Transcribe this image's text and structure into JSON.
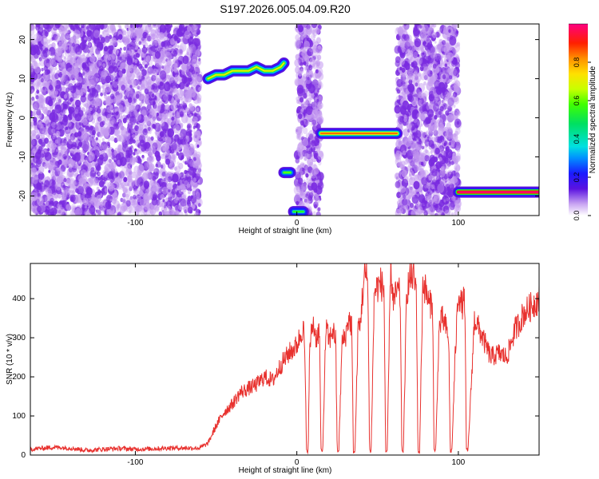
{
  "figure_title": "S197.2026.005.04.09.R20",
  "colors": {
    "snr_line": "#e8312e",
    "sparse_purple": "#7a2be0",
    "faint_purple": "#c49af0",
    "axis": "#000000"
  },
  "chart_data": [
    {
      "id": "spectrogram",
      "type": "heatmap",
      "title": "",
      "xlabel": "Height of straight line (km)",
      "ylabel": "Frequency (Hz)",
      "xlim": [
        -165,
        150
      ],
      "ylim": [
        -25,
        24
      ],
      "x_ticks": [
        -100,
        0,
        100
      ],
      "x_tick_labels": [
        "-100",
        "0",
        "100"
      ],
      "y_ticks": [
        -20,
        -10,
        0,
        10,
        20
      ],
      "y_tick_labels": [
        "-20",
        "-10",
        "0",
        "10",
        "20"
      ],
      "noise_regions": [
        {
          "x": [
            -165,
            -60
          ],
          "level": 0.15
        },
        {
          "x": [
            0,
            15
          ],
          "level": 0.1
        },
        {
          "x": [
            62,
            100
          ],
          "level": 0.15
        }
      ],
      "ridges": [
        {
          "x": [
            -55,
            -50,
            -45,
            -40,
            -35,
            -30,
            -25,
            -20,
            -15,
            -10,
            -8
          ],
          "y": [
            10,
            11,
            11,
            12,
            12,
            12,
            13,
            12,
            12,
            13,
            14
          ],
          "amplitude": 0.55
        },
        {
          "x": [
            -8,
            -4
          ],
          "y": [
            -14,
            -14
          ],
          "amplitude": 0.45
        },
        {
          "x": [
            -2,
            4
          ],
          "y": [
            -24,
            -24
          ],
          "amplitude": 0.4
        },
        {
          "x": [
            15,
            62
          ],
          "y": [
            -4,
            -4
          ],
          "amplitude": 0.7
        },
        {
          "x": [
            100,
            150
          ],
          "y": [
            -19,
            -19
          ],
          "amplitude": 0.9
        }
      ],
      "colorbar": {
        "label": "Normalized spectral amplitude",
        "range": [
          0,
          1
        ],
        "ticks": [
          0.0,
          0.2,
          0.4,
          0.6,
          0.8
        ],
        "tick_labels": [
          "0.0",
          "0.2",
          "0.4",
          "0.6",
          "0.8"
        ]
      }
    },
    {
      "id": "snr",
      "type": "line",
      "title": "",
      "xlabel": "Height of straight line (km)",
      "ylabel": "SNR (10 * v/v)",
      "xlim": [
        -165,
        150
      ],
      "ylim": [
        0,
        490
      ],
      "x_ticks": [
        -100,
        0,
        100
      ],
      "x_tick_labels": [
        "-100",
        "0",
        "100"
      ],
      "y_ticks": [
        0,
        100,
        200,
        300,
        400
      ],
      "y_tick_labels": [
        "0",
        "100",
        "200",
        "300",
        "400"
      ],
      "series": [
        {
          "name": "SNR",
          "x": [
            -165,
            -150,
            -140,
            -130,
            -120,
            -110,
            -100,
            -90,
            -80,
            -70,
            -60,
            -55,
            -50,
            -45,
            -40,
            -35,
            -30,
            -25,
            -20,
            -15,
            -10,
            -5,
            0,
            4,
            5,
            6,
            7,
            8,
            10,
            12,
            14,
            15,
            16,
            18,
            20,
            22,
            24,
            25,
            26,
            28,
            30,
            32,
            34,
            35,
            36,
            38,
            39,
            40,
            42,
            44,
            45,
            46,
            48,
            50,
            52,
            54,
            55,
            56,
            58,
            60,
            62,
            64,
            65,
            66,
            68,
            70,
            72,
            74,
            75,
            76,
            78,
            80,
            82,
            84,
            85,
            86,
            88,
            90,
            92,
            94,
            95,
            96,
            98,
            100,
            102,
            104,
            105,
            106,
            110,
            115,
            120,
            125,
            130,
            135,
            138,
            140,
            145,
            150
          ],
          "values": [
            15,
            20,
            18,
            12,
            15,
            17,
            15,
            16,
            18,
            18,
            18,
            30,
            75,
            110,
            130,
            160,
            170,
            180,
            200,
            190,
            230,
            260,
            280,
            330,
            250,
            10,
            12,
            280,
            340,
            300,
            320,
            10,
            8,
            330,
            290,
            320,
            300,
            10,
            12,
            290,
            300,
            350,
            330,
            10,
            8,
            340,
            320,
            380,
            460,
            450,
            10,
            12,
            420,
            430,
            440,
            420,
            10,
            8,
            480,
            390,
            420,
            410,
            10,
            12,
            420,
            450,
            460,
            420,
            10,
            8,
            440,
            420,
            380,
            400,
            10,
            12,
            320,
            350,
            330,
            300,
            10,
            12,
            250,
            420,
            380,
            400,
            10,
            12,
            350,
            300,
            250,
            260,
            250,
            320,
            340,
            360,
            380,
            400
          ]
        }
      ]
    }
  ]
}
